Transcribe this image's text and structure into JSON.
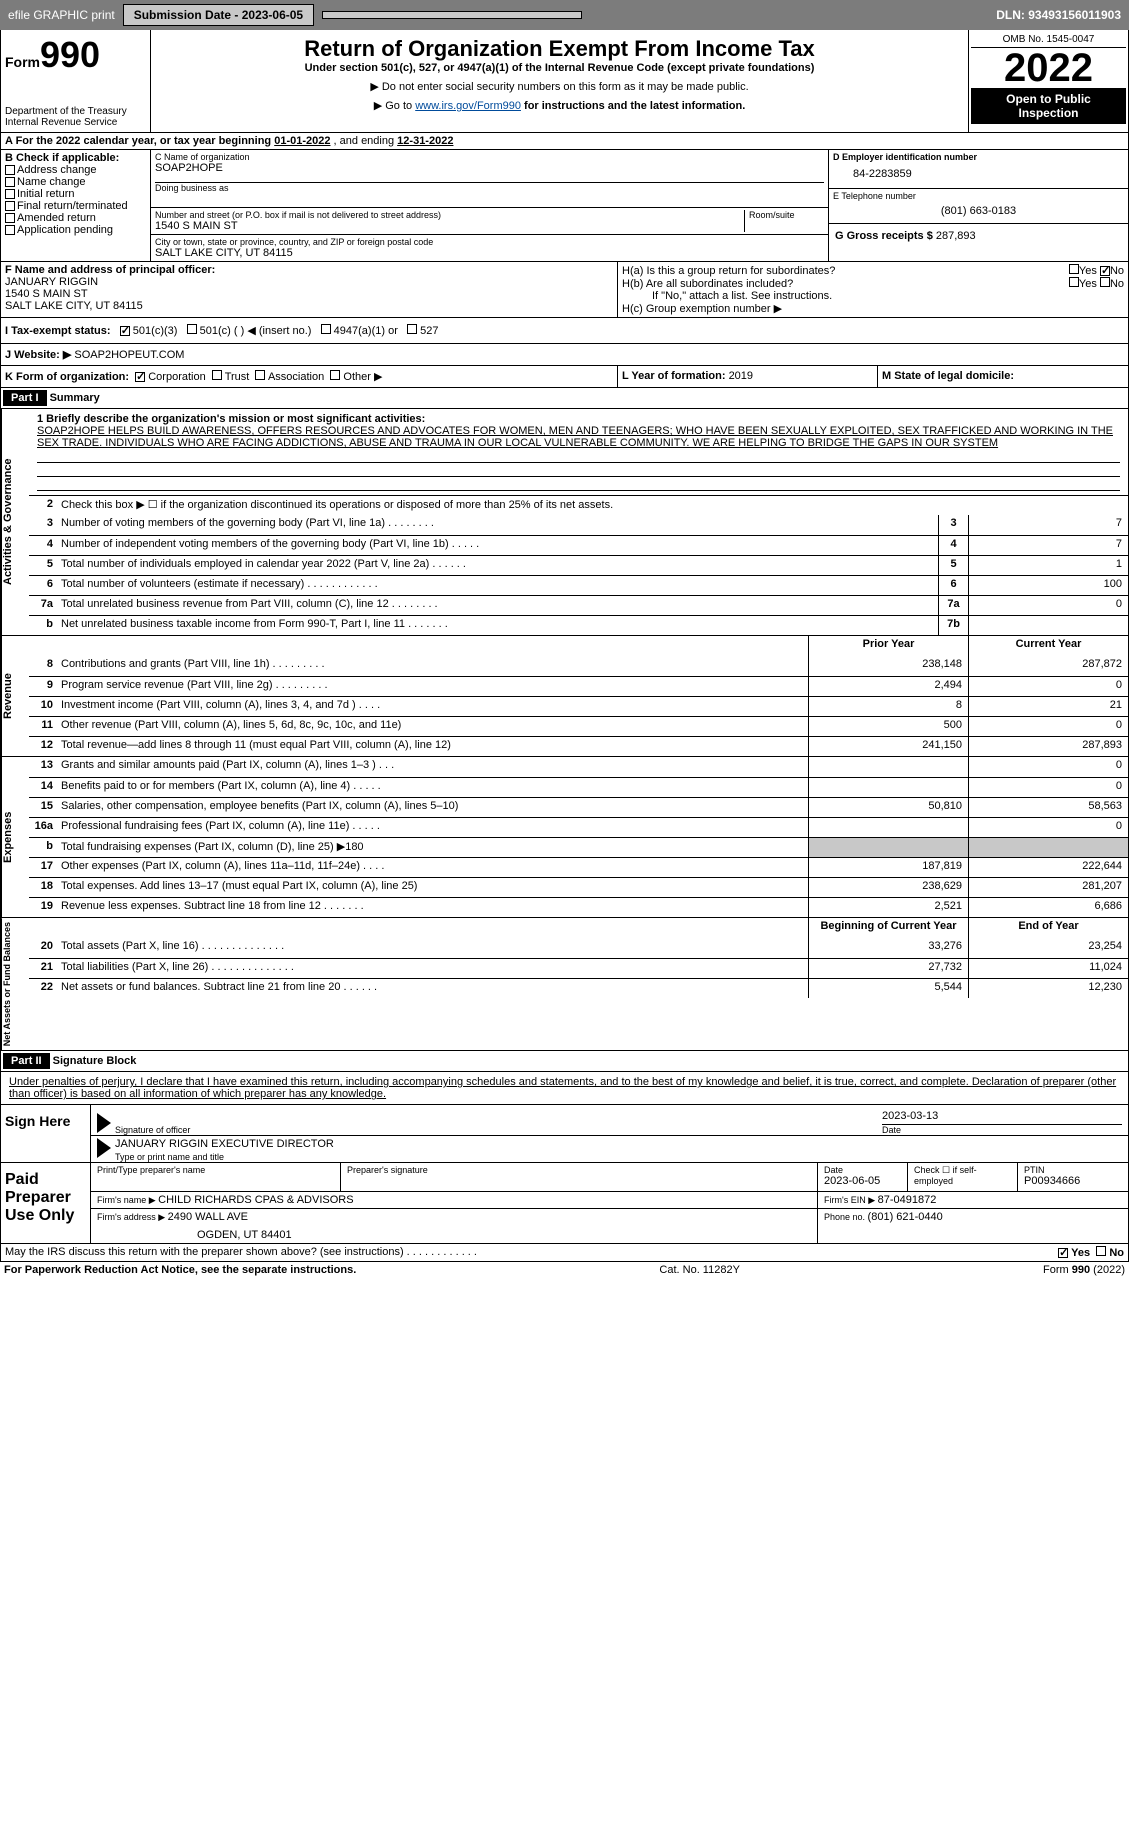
{
  "topbar": {
    "efile": "efile GRAPHIC print",
    "submission_label": "Submission Date - 2023-06-05",
    "dln": "DLN: 93493156011903"
  },
  "header": {
    "form_label": "Form",
    "form_number": "990",
    "dept": "Department of the Treasury",
    "irs": "Internal Revenue Service",
    "title": "Return of Organization Exempt From Income Tax",
    "subtitle": "Under section 501(c), 527, or 4947(a)(1) of the Internal Revenue Code (except private foundations)",
    "note1": "▶ Do not enter social security numbers on this form as it may be made public.",
    "note2_pre": "▶ Go to ",
    "note2_link": "www.irs.gov/Form990",
    "note2_post": " for instructions and the latest information.",
    "omb": "OMB No. 1545-0047",
    "year": "2022",
    "inspect": "Open to Public Inspection"
  },
  "row_a": {
    "label": "A For the 2022 calendar year, or tax year beginning ",
    "begin": "01-01-2022",
    "mid": "   , and ending ",
    "end": "12-31-2022"
  },
  "col_b": {
    "header": "B Check if applicable:",
    "opts": [
      "Address change",
      "Name change",
      "Initial return",
      "Final return/terminated",
      "Amended return",
      "Application pending"
    ]
  },
  "col_c": {
    "name_label": "C Name of organization",
    "name": "SOAP2HOPE",
    "dba_label": "Doing business as",
    "addr_label": "Number and street (or P.O. box if mail is not delivered to street address)",
    "room_label": "Room/suite",
    "street": "1540 S MAIN ST",
    "city_label": "City or town, state or province, country, and ZIP or foreign postal code",
    "city": "SALT LAKE CITY, UT  84115"
  },
  "col_d": {
    "label": "D Employer identification number",
    "ein": "84-2283859"
  },
  "col_e": {
    "label": "E Telephone number",
    "phone": "(801) 663-0183"
  },
  "col_g": {
    "label": "G Gross receipts $ ",
    "val": "287,893"
  },
  "row_f": {
    "label": "F  Name and address of principal officer:",
    "name": "JANUARY RIGGIN",
    "street": "1540 S MAIN ST",
    "city": "SALT LAKE CITY, UT  84115"
  },
  "row_h": {
    "a": "H(a)  Is this a group return for subordinates?",
    "b": "H(b)  Are all subordinates included?",
    "b_note": "If \"No,\" attach a list. See instructions.",
    "c": "H(c)  Group exemption number ▶",
    "yes": "Yes",
    "no": "No"
  },
  "row_i": {
    "label": "I  Tax-exempt status:",
    "o1": "501(c)(3)",
    "o2": "501(c) (  ) ◀ (insert no.)",
    "o3": "4947(a)(1) or",
    "o4": "527"
  },
  "row_j": {
    "label": "J   Website: ▶ ",
    "val": "SOAP2HOPEUT.COM"
  },
  "row_k": {
    "label": "K Form of organization:",
    "o1": "Corporation",
    "o2": "Trust",
    "o3": "Association",
    "o4": "Other ▶"
  },
  "row_l": {
    "label": "L Year of formation: ",
    "val": "2019"
  },
  "row_m": {
    "label": "M State of legal domicile:"
  },
  "part1": {
    "tag": "Part I",
    "title": "Summary",
    "q1": "1 Briefly describe the organization's mission or most significant activities:",
    "mission": "SOAP2HOPE HELPS BUILD AWARENESS, OFFERS RESOURCES AND ADVOCATES FOR WOMEN, MEN AND TEENAGERS; WHO HAVE BEEN SEXUALLY EXPLOITED, SEX TRAFFICKED AND WORKING IN THE SEX TRADE. INDIVIDUALS WHO ARE FACING ADDICTIONS, ABUSE AND TRAUMA IN OUR LOCAL VULNERABLE COMMUNITY. WE ARE HELPING TO BRIDGE THE GAPS IN OUR SYSTEM",
    "q2": "Check this box ▶ ☐  if the organization discontinued its operations or disposed of more than 25% of its net assets.",
    "tabs": {
      "ag": "Activities & Governance",
      "rev": "Revenue",
      "exp": "Expenses",
      "net": "Net Assets or Fund Balances"
    },
    "hdr_prior": "Prior Year",
    "hdr_current": "Current Year",
    "hdr_boy": "Beginning of Current Year",
    "hdr_eoy": "End of Year",
    "lines_ag": [
      {
        "n": "3",
        "t": "Number of voting members of the governing body (Part VI, line 1a)   .    .    .    .    .    .    .    .",
        "b": "3",
        "v": "7"
      },
      {
        "n": "4",
        "t": "Number of independent voting members of the governing body (Part VI, line 1b)   .    .    .    .    .",
        "b": "4",
        "v": "7"
      },
      {
        "n": "5",
        "t": "Total number of individuals employed in calendar year 2022 (Part V, line 2a)   .    .    .    .    .    .",
        "b": "5",
        "v": "1"
      },
      {
        "n": "6",
        "t": "Total number of volunteers (estimate if necessary)    .    .    .    .    .    .    .    .    .    .    .    .",
        "b": "6",
        "v": "100"
      },
      {
        "n": "7a",
        "t": "Total unrelated business revenue from Part VIII, column (C), line 12   .    .    .    .    .    .    .    .",
        "b": "7a",
        "v": "0"
      },
      {
        "n": "b",
        "t": "Net unrelated business taxable income from Form 990-T, Part I, line 11   .    .    .    .    .    .    .",
        "b": "7b",
        "v": ""
      }
    ],
    "lines_rev": [
      {
        "n": "8",
        "t": "Contributions and grants (Part VIII, line 1h)   .    .    .    .    .    .    .    .    .",
        "p": "238,148",
        "c": "287,872"
      },
      {
        "n": "9",
        "t": "Program service revenue (Part VIII, line 2g)   .    .    .    .    .    .    .    .    .",
        "p": "2,494",
        "c": "0"
      },
      {
        "n": "10",
        "t": "Investment income (Part VIII, column (A), lines 3, 4, and 7d )   .    .    .    .",
        "p": "8",
        "c": "21"
      },
      {
        "n": "11",
        "t": "Other revenue (Part VIII, column (A), lines 5, 6d, 8c, 9c, 10c, and 11e)",
        "p": "500",
        "c": "0"
      },
      {
        "n": "12",
        "t": "Total revenue—add lines 8 through 11 (must equal Part VIII, column (A), line 12)",
        "p": "241,150",
        "c": "287,893"
      }
    ],
    "lines_exp": [
      {
        "n": "13",
        "t": "Grants and similar amounts paid (Part IX, column (A), lines 1–3 )   .    .    .",
        "p": "",
        "c": "0"
      },
      {
        "n": "14",
        "t": "Benefits paid to or for members (Part IX, column (A), line 4)   .    .    .    .    .",
        "p": "",
        "c": "0"
      },
      {
        "n": "15",
        "t": "Salaries, other compensation, employee benefits (Part IX, column (A), lines 5–10)",
        "p": "50,810",
        "c": "58,563"
      },
      {
        "n": "16a",
        "t": "Professional fundraising fees (Part IX, column (A), line 11e)   .    .    .    .    .",
        "p": "",
        "c": "0"
      },
      {
        "n": "b",
        "t": "Total fundraising expenses (Part IX, column (D), line 25) ▶180",
        "p": "GRAY",
        "c": "GRAY"
      },
      {
        "n": "17",
        "t": "Other expenses (Part IX, column (A), lines 11a–11d, 11f–24e)   .    .    .    .",
        "p": "187,819",
        "c": "222,644"
      },
      {
        "n": "18",
        "t": "Total expenses. Add lines 13–17 (must equal Part IX, column (A), line 25)",
        "p": "238,629",
        "c": "281,207"
      },
      {
        "n": "19",
        "t": "Revenue less expenses. Subtract line 18 from line 12   .    .    .    .    .    .    .",
        "p": "2,521",
        "c": "6,686"
      }
    ],
    "lines_net": [
      {
        "n": "20",
        "t": "Total assets (Part X, line 16)   .    .    .    .    .    .    .    .    .    .    .    .    .    .",
        "p": "33,276",
        "c": "23,254"
      },
      {
        "n": "21",
        "t": "Total liabilities (Part X, line 26)   .    .    .    .    .    .    .    .    .    .    .    .    .    .",
        "p": "27,732",
        "c": "11,024"
      },
      {
        "n": "22",
        "t": "Net assets or fund balances. Subtract line 21 from line 20   .    .    .    .    .    .",
        "p": "5,544",
        "c": "12,230"
      }
    ]
  },
  "part2": {
    "tag": "Part II",
    "title": "Signature Block",
    "decl": "Under penalties of perjury, I declare that I have examined this return, including accompanying schedules and statements, and to the best of my knowledge and belief, it is true, correct, and complete. Declaration of preparer (other than officer) is based on all information of which preparer has any knowledge."
  },
  "sign": {
    "label": "Sign Here",
    "sig_of_officer": "Signature of officer",
    "date": "2023-03-13",
    "date_label": "Date",
    "name": "JANUARY RIGGIN  EXECUTIVE DIRECTOR",
    "name_label": "Type or print name and title"
  },
  "paid": {
    "label": "Paid Preparer Use Only",
    "h_name": "Print/Type preparer's name",
    "h_sig": "Preparer's signature",
    "h_date": "Date",
    "date": "2023-06-05",
    "h_check": "Check ☐ if self-employed",
    "h_ptin": "PTIN",
    "ptin": "P00934666",
    "firm_name_label": "Firm's name    ▶ ",
    "firm_name": "CHILD RICHARDS CPAS & ADVISORS",
    "firm_ein_label": "Firm's EIN ▶ ",
    "firm_ein": "87-0491872",
    "firm_addr_label": "Firm's address ▶ ",
    "firm_addr1": "2490 WALL AVE",
    "firm_addr2": "OGDEN, UT  84401",
    "phone_label": "Phone no. ",
    "phone": "(801) 621-0440"
  },
  "discuss": {
    "q": "May the IRS discuss this return with the preparer shown above? (see instructions)   .    .    .    .    .    .    .    .    .    .    .    .",
    "yes": "Yes",
    "no": "No"
  },
  "footer": {
    "left": "For Paperwork Reduction Act Notice, see the separate instructions.",
    "mid": "Cat. No. 11282Y",
    "right": "Form 990 (2022)"
  },
  "colors": {
    "topbar_bg": "#7c7c7c",
    "link": "#004b9b",
    "gray_cell": "#c8c8c8"
  }
}
